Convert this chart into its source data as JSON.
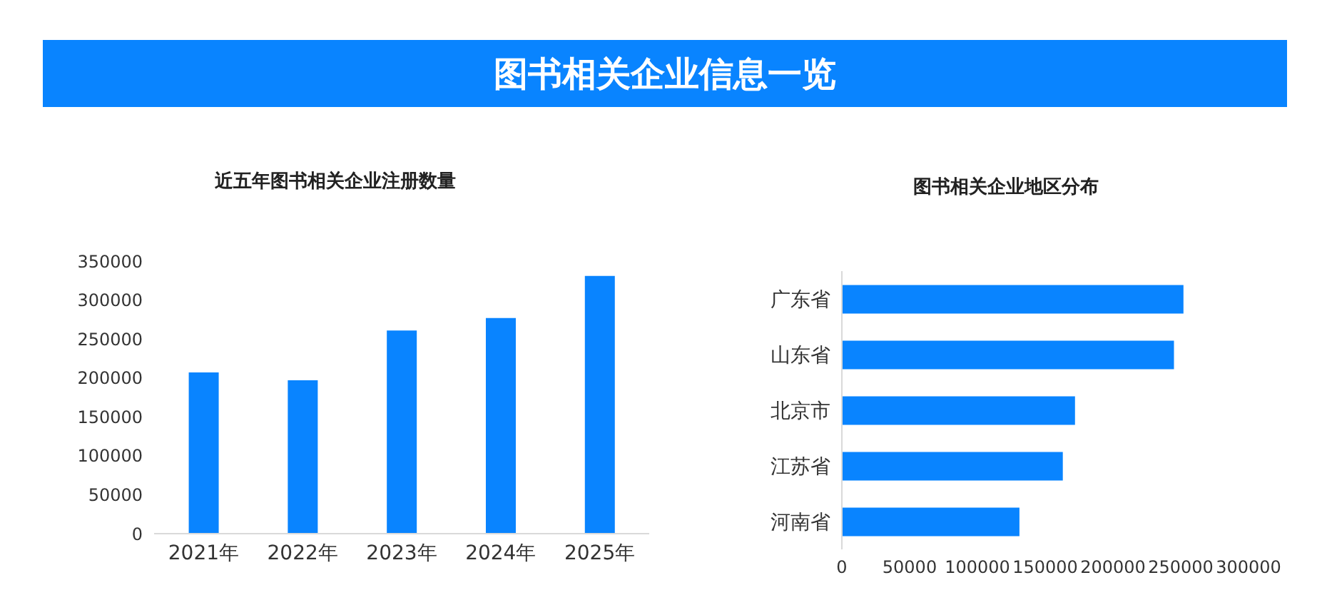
{
  "chart_data": [
    {
      "type": "bar",
      "title": "近五年图书相关企业注册数量",
      "annotations": [
        "图书相关企业信息一览"
      ],
      "categories": [
        "2021年",
        "2022年",
        "2023年",
        "2024年",
        "2025年"
      ],
      "values": [
        207000,
        197000,
        261000,
        277000,
        331000
      ],
      "color": "#0984ff",
      "ylim": [
        0,
        350000
      ],
      "yticks": [
        0,
        50000,
        100000,
        150000,
        200000,
        250000,
        300000,
        350000
      ]
    },
    {
      "type": "bar",
      "orientation": "horizontal",
      "title": "图书相关企业地区分布",
      "categories": [
        "广东省",
        "山东省",
        "北京市",
        "江苏省",
        "河南省"
      ],
      "values": [
        252000,
        245000,
        172000,
        163000,
        131000
      ],
      "color": "#0984ff",
      "xlim": [
        0,
        300000
      ],
      "xticks": [
        0,
        50000,
        100000,
        150000,
        200000,
        250000,
        300000
      ]
    }
  ]
}
